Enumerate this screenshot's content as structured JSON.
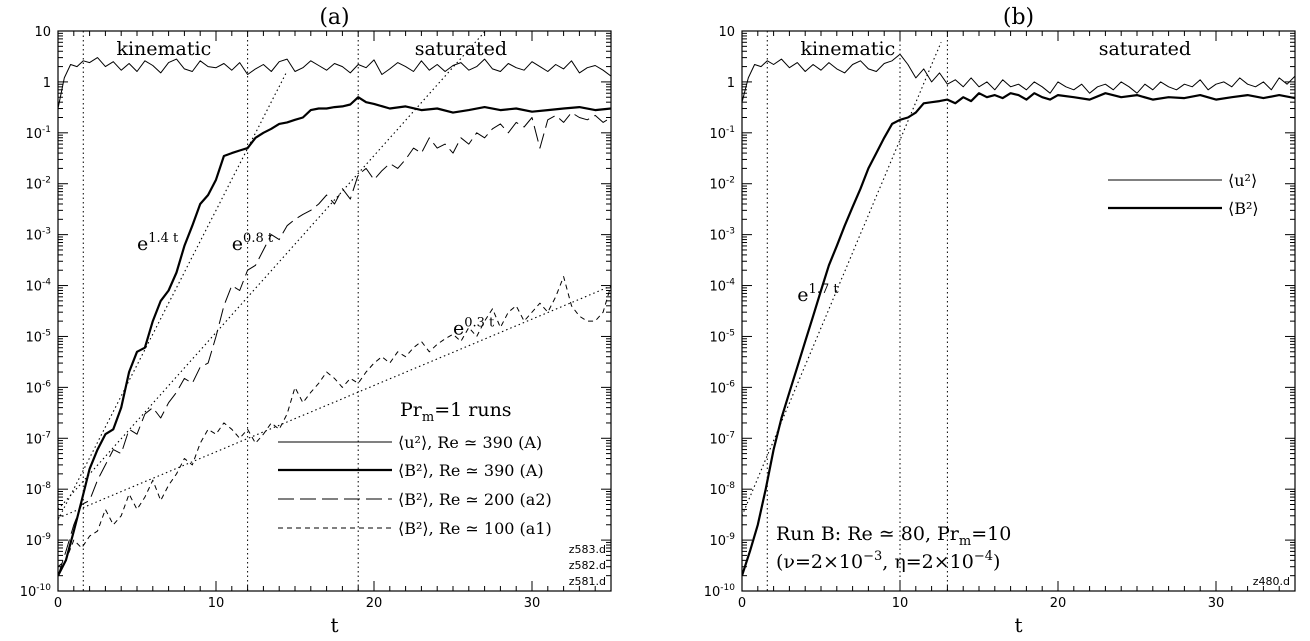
{
  "chart_data": [
    {
      "type": "line",
      "title": "(a)",
      "xlabel": "t",
      "xlim": [
        0,
        35
      ],
      "ylim": [
        1e-10,
        10
      ],
      "yscale": "log",
      "xticks": [
        0,
        10,
        20,
        30
      ],
      "xtick_labels": [
        "0",
        "10",
        "20",
        "30"
      ],
      "yticks": [
        1e-10,
        1e-09,
        1e-08,
        1e-07,
        1e-06,
        1e-05,
        0.0001,
        0.001,
        0.01,
        0.1,
        1,
        10
      ],
      "ytick_labels": [
        {
          "base": "10",
          "exp": "-10"
        },
        {
          "base": "10",
          "exp": "-9"
        },
        {
          "base": "10",
          "exp": "-8"
        },
        {
          "base": "10",
          "exp": "-7"
        },
        {
          "base": "10",
          "exp": "-6"
        },
        {
          "base": "10",
          "exp": "-5"
        },
        {
          "base": "10",
          "exp": "-4"
        },
        {
          "base": "10",
          "exp": "-3"
        },
        {
          "base": "10",
          "exp": "-2"
        },
        {
          "base": "10",
          "exp": "-1"
        },
        {
          "base": "1",
          "exp": ""
        },
        {
          "base": "10",
          "exp": ""
        }
      ],
      "vlines": [
        1.6,
        12,
        19
      ],
      "region_labels": [
        {
          "text": "kinematic",
          "x": 6.7
        },
        {
          "text": "saturated",
          "x": 25.5
        }
      ],
      "fits": [
        {
          "rate": 1.4,
          "x": [
            0,
            14.5
          ],
          "y0": 2.5e-09,
          "label_base": "e",
          "label_exp": "1.4 t",
          "label_at": [
            5.0,
            0.0005
          ]
        },
        {
          "rate": 0.8,
          "x": [
            0,
            30
          ],
          "y0": 4e-09,
          "label_base": "e",
          "label_exp": "0.8 t",
          "label_at": [
            11.0,
            0.0005
          ]
        },
        {
          "rate": 0.3,
          "x": [
            0,
            35
          ],
          "y0": 2.7e-09,
          "label_base": "e",
          "label_exp": "0.3 t",
          "label_at": [
            25.0,
            1.1e-05
          ]
        }
      ],
      "series": [
        {
          "name": "⟨u²⟩, Re ≃ 390 (A)",
          "style": "thin",
          "x": [
            0,
            0.4,
            0.8,
            1.2,
            1.6,
            2,
            2.5,
            3,
            3.5,
            4,
            4.5,
            5,
            5.5,
            6,
            6.5,
            7,
            7.5,
            8,
            8.5,
            9,
            9.5,
            10,
            10.5,
            11,
            11.5,
            12,
            12.5,
            13,
            13.5,
            14,
            14.5,
            15,
            15.5,
            16,
            16.5,
            17,
            17.5,
            18,
            18.5,
            19,
            19.5,
            20,
            20.5,
            21,
            21.5,
            22,
            22.5,
            23,
            23.5,
            24,
            24.5,
            25,
            25.5,
            26,
            26.5,
            27,
            27.5,
            28,
            28.5,
            29,
            29.5,
            30,
            30.5,
            31,
            31.5,
            32,
            32.5,
            33,
            33.5,
            34,
            34.5,
            35
          ],
          "y": [
            0.3,
            1.2,
            2.2,
            2.0,
            2.6,
            2.4,
            3.0,
            2.0,
            2.5,
            1.7,
            2.3,
            1.6,
            2.6,
            2.1,
            1.5,
            2.4,
            2.8,
            1.8,
            1.6,
            2.6,
            2.0,
            1.9,
            2.3,
            1.7,
            2.4,
            1.4,
            1.8,
            2.2,
            1.6,
            2.5,
            2.8,
            1.6,
            1.9,
            2.6,
            2.1,
            1.7,
            2.3,
            2.0,
            1.5,
            2.2,
            1.9,
            2.7,
            1.4,
            1.8,
            2.4,
            2.0,
            1.6,
            2.6,
            1.7,
            2.2,
            1.6,
            2.1,
            2.4,
            1.7,
            2.0,
            2.8,
            1.8,
            1.6,
            2.3,
            1.9,
            1.7,
            2.5,
            2.0,
            1.6,
            2.2,
            1.8,
            2.6,
            1.5,
            1.9,
            2.1,
            1.7,
            1.3
          ]
        },
        {
          "name": "⟨B²⟩, Re ≃ 390 (A)",
          "style": "thick",
          "x": [
            0,
            0.5,
            1,
            1.5,
            2,
            2.5,
            3,
            3.5,
            4,
            4.5,
            5,
            5.5,
            6,
            6.5,
            7,
            7.5,
            8,
            8.5,
            9,
            9.5,
            10,
            10.5,
            11,
            11.5,
            12,
            12.5,
            13,
            13.5,
            14,
            14.5,
            15,
            15.5,
            16,
            16.5,
            17,
            17.5,
            18,
            18.5,
            19,
            19.5,
            20,
            21,
            22,
            23,
            24,
            25,
            26,
            27,
            28,
            29,
            30,
            31,
            32,
            33,
            34,
            35
          ],
          "y": [
            2e-10,
            4e-10,
            1.5e-09,
            6e-09,
            2.5e-08,
            6e-08,
            1.2e-07,
            1.5e-07,
            4e-07,
            2e-06,
            5e-06,
            6e-06,
            2e-05,
            5e-05,
            8e-05,
            0.00018,
            0.0006,
            0.0015,
            0.004,
            0.006,
            0.012,
            0.035,
            0.04,
            0.045,
            0.05,
            0.08,
            0.1,
            0.12,
            0.15,
            0.16,
            0.18,
            0.2,
            0.28,
            0.3,
            0.3,
            0.32,
            0.33,
            0.36,
            0.5,
            0.4,
            0.37,
            0.3,
            0.33,
            0.28,
            0.3,
            0.25,
            0.28,
            0.32,
            0.28,
            0.3,
            0.26,
            0.28,
            0.3,
            0.32,
            0.28,
            0.3
          ]
        },
        {
          "name": "⟨B²⟩, Re ≃ 200 (a2)",
          "style": "longdash",
          "x": [
            0,
            0.5,
            1,
            1.5,
            2,
            2.5,
            3,
            3.5,
            4,
            4.5,
            5,
            5.5,
            6,
            6.5,
            7,
            7.5,
            8,
            8.5,
            9,
            9.5,
            10,
            10.5,
            11,
            11.5,
            12,
            12.5,
            13,
            13.5,
            14,
            14.5,
            15,
            15.5,
            16,
            16.5,
            17,
            17.5,
            18,
            18.5,
            19,
            19.5,
            20,
            20.5,
            21,
            21.5,
            22,
            22.5,
            23,
            23.5,
            24,
            24.5,
            25,
            25.5,
            26,
            26.5,
            27,
            27.5,
            28,
            28.5,
            29,
            29.5,
            30,
            30.5,
            31,
            31.5,
            32,
            32.5,
            33,
            33.5,
            34,
            34.5,
            35
          ],
          "y": [
            2e-10,
            6e-10,
            2e-09,
            5e-09,
            6e-09,
            1.5e-08,
            3e-08,
            6e-08,
            5e-08,
            1.5e-07,
            1.2e-07,
            3e-07,
            4e-07,
            2.5e-07,
            5e-07,
            8e-07,
            1.5e-06,
            1.2e-06,
            2.5e-06,
            3e-06,
            1e-05,
            4e-05,
            0.0001,
            8e-05,
            0.0002,
            0.00025,
            0.0005,
            0.001,
            0.0008,
            0.0015,
            0.002,
            0.0025,
            0.003,
            0.004,
            0.006,
            0.004,
            0.008,
            0.005,
            0.015,
            0.02,
            0.012,
            0.018,
            0.025,
            0.02,
            0.03,
            0.05,
            0.04,
            0.08,
            0.05,
            0.06,
            0.04,
            0.08,
            0.06,
            0.1,
            0.08,
            0.12,
            0.15,
            0.1,
            0.16,
            0.13,
            0.2,
            0.05,
            0.18,
            0.22,
            0.16,
            0.25,
            0.2,
            0.18,
            0.22,
            0.16,
            0.2
          ]
        },
        {
          "name": "⟨B²⟩, Re ≃ 100 (a1)",
          "style": "shortdash",
          "x": [
            0,
            0.5,
            1,
            1.5,
            2,
            2.5,
            3,
            3.5,
            4,
            4.5,
            5,
            5.5,
            6,
            6.5,
            7,
            7.5,
            8,
            8.5,
            9,
            9.5,
            10,
            10.5,
            11,
            11.5,
            12,
            12.5,
            13,
            13.5,
            14,
            14.5,
            15,
            15.5,
            16,
            16.5,
            17,
            17.5,
            18,
            18.5,
            19,
            19.5,
            20,
            20.5,
            21,
            21.5,
            22,
            22.5,
            23,
            23.5,
            24,
            24.5,
            25,
            25.5,
            26,
            26.5,
            27,
            27.5,
            28,
            28.5,
            29,
            29.5,
            30,
            30.5,
            31,
            31.5,
            32,
            32.5,
            33,
            33.5,
            34,
            34.5,
            35
          ],
          "y": [
            3e-10,
            4e-10,
            1e-09,
            7e-10,
            1.2e-09,
            1.5e-09,
            4e-09,
            2e-09,
            3e-09,
            8e-09,
            4e-09,
            7e-09,
            1.5e-08,
            6e-09,
            1.2e-08,
            2e-08,
            4e-08,
            3e-08,
            8e-08,
            1.5e-07,
            1.2e-07,
            2e-07,
            1.5e-07,
            1e-07,
            1.5e-07,
            8e-08,
            1.2e-07,
            2e-07,
            1.5e-07,
            3e-07,
            1e-06,
            5e-07,
            8e-07,
            1.2e-06,
            2e-06,
            1.5e-06,
            1e-06,
            1.5e-06,
            1.2e-06,
            2e-06,
            3e-06,
            4e-06,
            3e-06,
            5e-06,
            4e-06,
            6e-06,
            8e-06,
            5e-06,
            7e-06,
            9e-06,
            1.1e-05,
            8e-06,
            1.5e-05,
            1e-05,
            2e-05,
            3.5e-05,
            1.5e-05,
            3e-05,
            4e-05,
            2e-05,
            3e-05,
            4.5e-05,
            3e-05,
            6e-05,
            0.00015,
            4e-05,
            2.5e-05,
            2e-05,
            2e-05,
            3e-05,
            0.0001
          ]
        }
      ],
      "annotation": {
        "base": "Pr",
        "sub": "m",
        "rest": "=1 runs"
      },
      "file_tags": [
        "z583.d",
        "z582.d",
        "z581.d"
      ]
    },
    {
      "type": "line",
      "title": "(b)",
      "xlabel": "t",
      "xlim": [
        0,
        35
      ],
      "ylim": [
        1e-10,
        10
      ],
      "yscale": "log",
      "xticks": [
        0,
        10,
        20,
        30
      ],
      "xtick_labels": [
        "0",
        "10",
        "20",
        "30"
      ],
      "yticks": [
        1e-10,
        1e-09,
        1e-08,
        1e-07,
        1e-06,
        1e-05,
        0.0001,
        0.001,
        0.01,
        0.1,
        1,
        10
      ],
      "ytick_labels": [
        {
          "base": "10",
          "exp": "-10"
        },
        {
          "base": "10",
          "exp": "-9"
        },
        {
          "base": "10",
          "exp": "-8"
        },
        {
          "base": "10",
          "exp": "-7"
        },
        {
          "base": "10",
          "exp": "-6"
        },
        {
          "base": "10",
          "exp": "-5"
        },
        {
          "base": "10",
          "exp": "-4"
        },
        {
          "base": "10",
          "exp": "-3"
        },
        {
          "base": "10",
          "exp": "-2"
        },
        {
          "base": "10",
          "exp": "-1"
        },
        {
          "base": "1",
          "exp": ""
        },
        {
          "base": "10",
          "exp": ""
        }
      ],
      "vlines": [
        1.6,
        10,
        13
      ],
      "region_labels": [
        {
          "text": "kinematic",
          "x": 6.7
        },
        {
          "text": "saturated",
          "x": 25.5
        }
      ],
      "fits": [
        {
          "rate": 1.7,
          "x": [
            0,
            12.6
          ],
          "y0": 3e-09,
          "label_base": "e",
          "label_exp": "1.7 t",
          "label_at": [
            3.5,
            5e-05
          ]
        }
      ],
      "series": [
        {
          "name": "⟨u²⟩",
          "style": "thin",
          "x": [
            0,
            0.4,
            0.8,
            1.2,
            1.6,
            2,
            2.5,
            3,
            3.5,
            4,
            4.5,
            5,
            5.5,
            6,
            6.5,
            7,
            7.5,
            8,
            8.5,
            9,
            9.5,
            10,
            10.5,
            11,
            11.5,
            12,
            12.5,
            13,
            13.5,
            14,
            14.5,
            15,
            15.5,
            16,
            16.5,
            17,
            17.5,
            18,
            18.5,
            19,
            19.5,
            20,
            20.5,
            21,
            21.5,
            22,
            22.5,
            23,
            23.5,
            24,
            24.5,
            25,
            25.5,
            26,
            26.5,
            27,
            27.5,
            28,
            28.5,
            29,
            29.5,
            30,
            30.5,
            31,
            31.5,
            32,
            32.5,
            33,
            33.5,
            34,
            34.5,
            35
          ],
          "y": [
            0.4,
            1.2,
            2.2,
            2.0,
            2.6,
            2.2,
            2.8,
            1.9,
            2.4,
            1.6,
            2.2,
            1.7,
            2.4,
            1.8,
            1.5,
            2.2,
            2.6,
            1.8,
            1.6,
            2.3,
            2.6,
            3.5,
            2.2,
            1.2,
            1.8,
            1.0,
            1.5,
            0.9,
            1.1,
            0.8,
            1.2,
            0.8,
            1.0,
            0.7,
            1.1,
            0.8,
            0.9,
            0.7,
            1.0,
            0.8,
            0.6,
            1.0,
            0.8,
            0.7,
            0.9,
            0.6,
            0.8,
            0.9,
            0.7,
            1.0,
            0.8,
            0.6,
            0.9,
            0.7,
            1.0,
            0.8,
            0.7,
            0.9,
            0.8,
            1.1,
            0.7,
            0.9,
            1.0,
            0.8,
            1.2,
            0.9,
            0.8,
            1.0,
            0.7,
            1.2,
            0.9,
            1.3
          ]
        },
        {
          "name": "⟨B²⟩",
          "style": "thick",
          "x": [
            0,
            0.5,
            1,
            1.5,
            2,
            2.5,
            3,
            3.5,
            4,
            4.5,
            5,
            5.5,
            6,
            6.5,
            7,
            7.5,
            8,
            8.5,
            9,
            9.5,
            10,
            10.5,
            11,
            11.5,
            12,
            12.5,
            13,
            13.5,
            14,
            14.5,
            15,
            15.5,
            16,
            16.5,
            17,
            17.5,
            18,
            18.5,
            19,
            19.5,
            20,
            21,
            22,
            23,
            24,
            25,
            26,
            27,
            28,
            29,
            30,
            31,
            32,
            33,
            34,
            35
          ],
          "y": [
            2e-10,
            6e-10,
            2e-09,
            1e-08,
            6e-08,
            2.5e-07,
            8e-07,
            2.5e-06,
            8e-06,
            2.5e-05,
            8e-05,
            0.00025,
            0.0006,
            0.0015,
            0.0035,
            0.008,
            0.02,
            0.04,
            0.08,
            0.15,
            0.18,
            0.2,
            0.25,
            0.38,
            0.4,
            0.42,
            0.45,
            0.38,
            0.5,
            0.42,
            0.6,
            0.5,
            0.55,
            0.48,
            0.6,
            0.55,
            0.45,
            0.6,
            0.5,
            0.45,
            0.55,
            0.5,
            0.45,
            0.6,
            0.5,
            0.55,
            0.45,
            0.5,
            0.48,
            0.55,
            0.45,
            0.5,
            0.55,
            0.48,
            0.55,
            0.48
          ]
        }
      ],
      "run_text": {
        "line1": {
          "a": "Run B: Re ≃ 80, Pr",
          "sub": "m",
          "b": "=10"
        },
        "line2": {
          "a": "(ν=2×10",
          "sup1": "−3",
          "b": ", η=2×10",
          "sup2": "−4",
          "c": ")"
        }
      },
      "file_tags": [
        "z480.d"
      ]
    }
  ]
}
